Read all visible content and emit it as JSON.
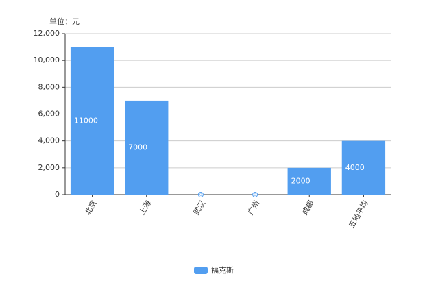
{
  "chart_data": {
    "type": "bar",
    "y_label": "单位：元",
    "categories": [
      "北京",
      "上海",
      "武汉",
      "广州",
      "成都",
      "五地平均"
    ],
    "series": [
      {
        "name": "福克斯",
        "color": "#529ef0",
        "values": [
          11000,
          7000,
          0,
          0,
          2000,
          4000
        ]
      }
    ],
    "ylim": [
      0,
      12000
    ],
    "yticks": [
      0,
      {
        "value": 2000,
        "label": "2,000"
      },
      {
        "value": 4000,
        "label": "4,000"
      },
      {
        "value": 6000,
        "label": "6,000"
      },
      {
        "value": 8000,
        "label": "8,000"
      },
      {
        "value": 10000,
        "label": "10,000"
      },
      {
        "value": 12000,
        "label": "12,000"
      }
    ],
    "grid": true,
    "legend": "bottom"
  }
}
